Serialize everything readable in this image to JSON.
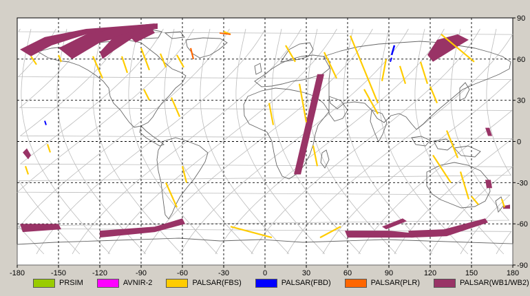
{
  "map": {
    "x_ticks": [
      "-180",
      "-150",
      "-120",
      "-90",
      "-60",
      "-30",
      "0",
      "30",
      "60",
      "90",
      "120",
      "150",
      "180"
    ],
    "y_ticks": [
      "90",
      "60",
      "30",
      "0",
      "-30",
      "-60",
      "-90"
    ],
    "x_range": [
      -180,
      180
    ],
    "y_range": [
      -90,
      90
    ],
    "grid": "dashed, every 30 degrees"
  },
  "legend": [
    {
      "label": "PRSIM",
      "color": "#99cc00"
    },
    {
      "label": "AVNIR-2",
      "color": "#ff00ff"
    },
    {
      "label": "PALSAR(FBS)",
      "color": "#ffcc00"
    },
    {
      "label": "PALSAR(FBD)",
      "color": "#0000ff"
    },
    {
      "label": "PALSAR(PLR)",
      "color": "#ff6600"
    },
    {
      "label": "PALSAR(WB1/WB2)",
      "color": "#993366"
    }
  ],
  "colors": {
    "background": "#d4d0c8",
    "map_bg": "#ffffff",
    "coastline": "#666666",
    "orbit_track": "#bbbbbb",
    "grid": "#000000"
  }
}
